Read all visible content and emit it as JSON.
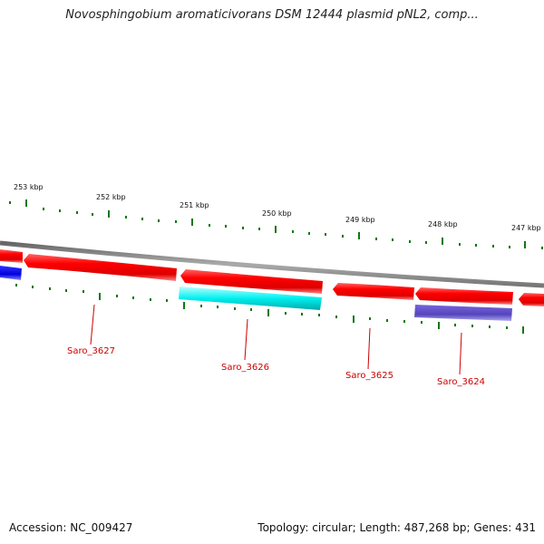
{
  "title": "Novosphingobium aromaticivorans DSM 12444 plasmid pNL2, comp...",
  "footer": {
    "accession": "Accession: NC_009427",
    "topology": "Topology: circular; Length: 487,268 bp; Genes: 431"
  },
  "kbp_labels": [
    "253 kbp",
    "252 kbp",
    "251 kbp",
    "250 kbp",
    "249 kbp",
    "248 kbp",
    "247 kbp"
  ],
  "gene_labels": [
    "Saro_3627",
    "Saro_3626",
    "Saro_3625",
    "Saro_3624"
  ],
  "colors": {
    "forward_gene": "#ff0000",
    "cyan_gene": "#00e5e5",
    "purple_gene": "#6655cc",
    "blue_gene": "#0000ee",
    "backbone": "#888888",
    "ticks": "#117711",
    "gene_label": "#cc0000"
  }
}
